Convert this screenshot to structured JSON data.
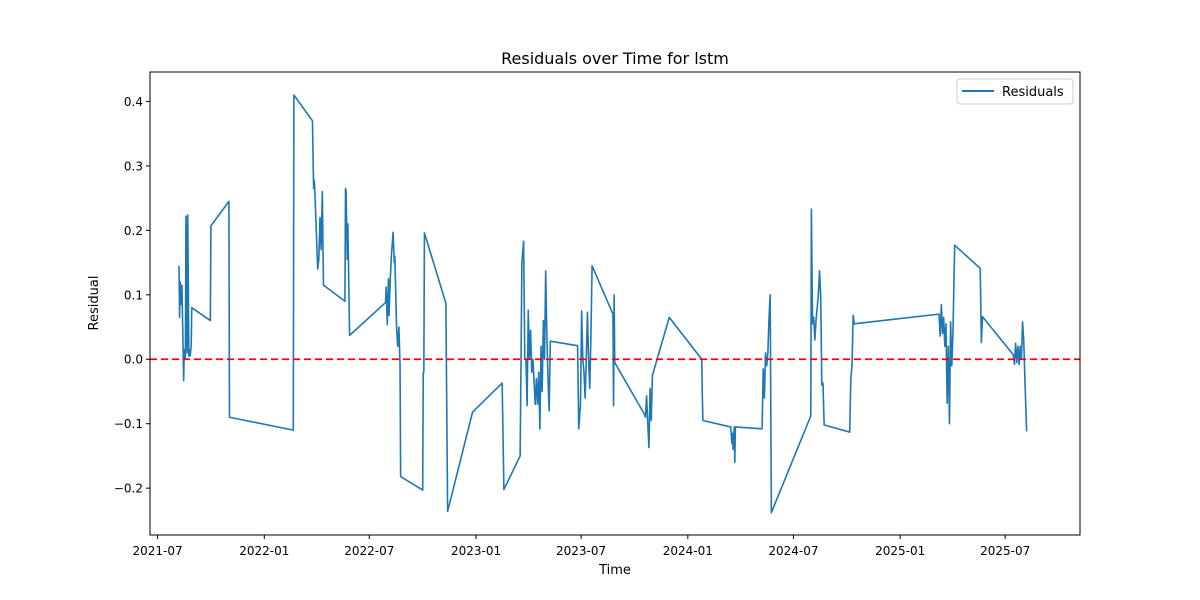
{
  "chart_data": {
    "type": "line",
    "title": "Residuals over Time for lstm",
    "xlabel": "Time",
    "ylabel": "Residual",
    "xlim": [
      "2021-06-18",
      "2025-11-07"
    ],
    "ylim": [
      -0.2727,
      0.4457
    ],
    "x_ticks": [
      "2021-07-01",
      "2022-01-01",
      "2022-07-01",
      "2023-01-01",
      "2023-07-01",
      "2024-01-01",
      "2024-07-01",
      "2025-01-01",
      "2025-07-01"
    ],
    "x_tick_labels": [
      "2021-07",
      "2022-01",
      "2022-07",
      "2023-01",
      "2023-07",
      "2024-01",
      "2024-07",
      "2025-01",
      "2025-07"
    ],
    "y_ticks": [
      -0.2,
      -0.1,
      0.0,
      0.1,
      0.2,
      0.3,
      0.4
    ],
    "y_tick_labels": [
      "−0.2",
      "−0.1",
      "0.0",
      "0.1",
      "0.2",
      "0.3",
      "0.4"
    ],
    "grid": false,
    "legend": {
      "position": "upper right",
      "entries": [
        "Residuals"
      ]
    },
    "reference_line": {
      "y": 0.0,
      "color": "#ff0000",
      "style": "dashed"
    },
    "colors": {
      "series": "#1f77b4",
      "reference": "#ff0000"
    },
    "series": [
      {
        "name": "Residuals",
        "points": [
          [
            "2021-08-07",
            0.145
          ],
          [
            "2021-08-08",
            0.065
          ],
          [
            "2021-08-09",
            0.12
          ],
          [
            "2021-08-11",
            0.085
          ],
          [
            "2021-08-12",
            0.115
          ],
          [
            "2021-08-14",
            0.02
          ],
          [
            "2021-08-15",
            -0.033
          ],
          [
            "2021-08-16",
            0.015
          ],
          [
            "2021-08-18",
            0.0
          ],
          [
            "2021-08-19",
            0.222
          ],
          [
            "2021-08-21",
            0.01
          ],
          [
            "2021-08-22",
            0.224
          ],
          [
            "2021-08-24",
            0.005
          ],
          [
            "2021-08-25",
            0.015
          ],
          [
            "2021-08-26",
            0.005
          ],
          [
            "2021-08-28",
            0.02
          ],
          [
            "2021-08-29",
            0.08
          ],
          [
            "2021-09-30",
            0.06
          ],
          [
            "2021-10-01",
            0.207
          ],
          [
            "2021-11-01",
            0.245
          ],
          [
            "2021-11-02",
            -0.09
          ],
          [
            "2022-02-20",
            -0.11
          ],
          [
            "2022-02-21",
            0.41
          ],
          [
            "2022-03-25",
            0.37
          ],
          [
            "2022-03-27",
            0.265
          ],
          [
            "2022-03-28",
            0.278
          ],
          [
            "2022-03-29",
            0.265
          ],
          [
            "2022-04-03",
            0.14
          ],
          [
            "2022-04-05",
            0.155
          ],
          [
            "2022-04-07",
            0.22
          ],
          [
            "2022-04-09",
            0.17
          ],
          [
            "2022-04-11",
            0.26
          ],
          [
            "2022-04-13",
            0.115
          ],
          [
            "2022-05-20",
            0.09
          ],
          [
            "2022-05-21",
            0.265
          ],
          [
            "2022-05-22",
            0.26
          ],
          [
            "2022-05-24",
            0.155
          ],
          [
            "2022-05-25",
            0.21
          ],
          [
            "2022-05-26",
            0.155
          ],
          [
            "2022-05-28",
            0.037
          ],
          [
            "2022-07-29",
            0.088
          ],
          [
            "2022-07-30",
            0.112
          ],
          [
            "2022-08-01",
            0.054
          ],
          [
            "2022-08-03",
            0.125
          ],
          [
            "2022-08-04",
            0.068
          ],
          [
            "2022-08-06",
            0.12
          ],
          [
            "2022-08-08",
            0.16
          ],
          [
            "2022-08-11",
            0.197
          ],
          [
            "2022-08-13",
            0.15
          ],
          [
            "2022-08-14",
            0.16
          ],
          [
            "2022-08-17",
            0.05
          ],
          [
            "2022-08-19",
            0.02
          ],
          [
            "2022-08-21",
            0.05
          ],
          [
            "2022-08-23",
            -0.01
          ],
          [
            "2022-08-24",
            -0.182
          ],
          [
            "2022-10-01",
            -0.203
          ],
          [
            "2022-10-02",
            -0.02
          ],
          [
            "2022-10-03",
            -0.02
          ],
          [
            "2022-10-04",
            0.196
          ],
          [
            "2022-11-10",
            0.087
          ],
          [
            "2022-11-13",
            -0.236
          ],
          [
            "2022-12-26",
            -0.082
          ],
          [
            "2023-02-15",
            -0.037
          ],
          [
            "2023-02-18",
            -0.202
          ],
          [
            "2023-03-18",
            -0.15
          ],
          [
            "2023-03-19",
            -0.055
          ],
          [
            "2023-03-21",
            0.15
          ],
          [
            "2023-03-24",
            0.183
          ],
          [
            "2023-03-26",
            0.0
          ],
          [
            "2023-03-28",
            0.0
          ],
          [
            "2023-03-30",
            -0.072
          ],
          [
            "2023-04-01",
            0.076
          ],
          [
            "2023-04-03",
            0.0
          ],
          [
            "2023-04-05",
            0.045
          ],
          [
            "2023-04-07",
            -0.02
          ],
          [
            "2023-04-09",
            0.0
          ],
          [
            "2023-04-11",
            -0.035
          ],
          [
            "2023-04-13",
            -0.07
          ],
          [
            "2023-04-15",
            -0.03
          ],
          [
            "2023-04-17",
            -0.07
          ],
          [
            "2023-04-19",
            -0.02
          ],
          [
            "2023-04-21",
            -0.108
          ],
          [
            "2023-04-23",
            0.02
          ],
          [
            "2023-04-25",
            -0.05
          ],
          [
            "2023-04-27",
            0.06
          ],
          [
            "2023-04-29",
            0.0
          ],
          [
            "2023-05-01",
            0.137
          ],
          [
            "2023-05-03",
            0.04
          ],
          [
            "2023-05-05",
            -0.03
          ],
          [
            "2023-05-07",
            -0.08
          ],
          [
            "2023-05-09",
            0.028
          ],
          [
            "2023-06-25",
            0.021
          ],
          [
            "2023-06-27",
            -0.108
          ],
          [
            "2023-06-30",
            -0.07
          ],
          [
            "2023-07-02",
            0.075
          ],
          [
            "2023-07-04",
            0.0
          ],
          [
            "2023-07-06",
            -0.02
          ],
          [
            "2023-07-08",
            -0.06
          ],
          [
            "2023-07-10",
            0.0
          ],
          [
            "2023-07-12",
            0.073
          ],
          [
            "2023-07-14",
            0.0
          ],
          [
            "2023-07-16",
            -0.045
          ],
          [
            "2023-07-18",
            0.035
          ],
          [
            "2023-07-20",
            0.145
          ],
          [
            "2023-08-25",
            0.07
          ],
          [
            "2023-08-26",
            -0.072
          ],
          [
            "2023-08-27",
            0.1
          ],
          [
            "2023-08-28",
            -0.005
          ],
          [
            "2023-10-18",
            -0.085
          ],
          [
            "2023-10-20",
            -0.09
          ],
          [
            "2023-10-22",
            -0.057
          ],
          [
            "2023-10-24",
            -0.1
          ],
          [
            "2023-10-26",
            -0.137
          ],
          [
            "2023-10-28",
            -0.045
          ],
          [
            "2023-10-30",
            -0.095
          ],
          [
            "2023-11-01",
            -0.025
          ],
          [
            "2023-11-30",
            0.065
          ],
          [
            "2024-01-25",
            0.0
          ],
          [
            "2024-01-26",
            -0.055
          ],
          [
            "2024-01-27",
            -0.095
          ],
          [
            "2024-03-15",
            -0.105
          ],
          [
            "2024-03-17",
            -0.13
          ],
          [
            "2024-03-18",
            -0.115
          ],
          [
            "2024-03-19",
            -0.14
          ],
          [
            "2024-03-21",
            -0.105
          ],
          [
            "2024-03-22",
            -0.16
          ],
          [
            "2024-03-23",
            -0.105
          ],
          [
            "2024-05-08",
            -0.108
          ],
          [
            "2024-05-10",
            -0.015
          ],
          [
            "2024-05-12",
            -0.06
          ],
          [
            "2024-05-14",
            0.01
          ],
          [
            "2024-05-16",
            -0.01
          ],
          [
            "2024-05-18",
            0.01
          ],
          [
            "2024-05-20",
            0.065
          ],
          [
            "2024-05-22",
            0.1
          ],
          [
            "2024-05-24",
            -0.238
          ],
          [
            "2024-07-31",
            -0.088
          ],
          [
            "2024-08-01",
            0.233
          ],
          [
            "2024-08-03",
            0.055
          ],
          [
            "2024-08-05",
            0.065
          ],
          [
            "2024-08-07",
            0.03
          ],
          [
            "2024-08-09",
            0.06
          ],
          [
            "2024-08-11",
            0.08
          ],
          [
            "2024-08-13",
            0.1
          ],
          [
            "2024-08-15",
            0.137
          ],
          [
            "2024-08-17",
            0.1
          ],
          [
            "2024-08-19",
            -0.04
          ],
          [
            "2024-08-21",
            -0.037
          ],
          [
            "2024-08-23",
            -0.102
          ],
          [
            "2024-10-06",
            -0.113
          ],
          [
            "2024-10-08",
            -0.03
          ],
          [
            "2024-10-10",
            -0.01
          ],
          [
            "2024-10-12",
            0.068
          ],
          [
            "2024-10-14",
            0.055
          ],
          [
            "2025-03-09",
            0.07
          ],
          [
            "2025-03-11",
            0.036
          ],
          [
            "2025-03-13",
            0.085
          ],
          [
            "2025-03-15",
            0.04
          ],
          [
            "2025-03-17",
            0.065
          ],
          [
            "2025-03-19",
            0.02
          ],
          [
            "2025-03-21",
            0.055
          ],
          [
            "2025-03-23",
            -0.068
          ],
          [
            "2025-03-25",
            0.02
          ],
          [
            "2025-03-27",
            -0.1
          ],
          [
            "2025-03-29",
            0.058
          ],
          [
            "2025-03-31",
            -0.01
          ],
          [
            "2025-04-02",
            0.04
          ],
          [
            "2025-04-05",
            0.177
          ],
          [
            "2025-05-19",
            0.141
          ],
          [
            "2025-05-21",
            0.026
          ],
          [
            "2025-05-23",
            0.066
          ],
          [
            "2025-07-15",
            0.007
          ],
          [
            "2025-07-17",
            -0.008
          ],
          [
            "2025-07-19",
            0.025
          ],
          [
            "2025-07-21",
            -0.005
          ],
          [
            "2025-07-23",
            0.02
          ],
          [
            "2025-07-25",
            -0.008
          ],
          [
            "2025-07-27",
            0.02
          ],
          [
            "2025-07-29",
            0.0
          ],
          [
            "2025-07-31",
            0.058
          ],
          [
            "2025-08-02",
            0.03
          ],
          [
            "2025-08-04",
            -0.03
          ],
          [
            "2025-08-07",
            -0.112
          ]
        ]
      }
    ]
  }
}
